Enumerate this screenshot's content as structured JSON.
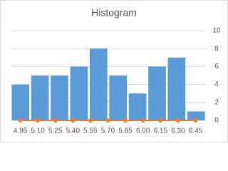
{
  "chart_data": [
    {
      "type": "bar",
      "title": "Histogram",
      "categories": [
        null,
        null,
        null,
        null,
        null,
        null,
        null,
        null,
        null,
        null
      ],
      "values": [
        4,
        5,
        5,
        6,
        8,
        5,
        3,
        6,
        7,
        1
      ],
      "color": "#5b9bd5",
      "ylim": [
        0,
        10
      ],
      "yticks": [
        0,
        2,
        4,
        6,
        8,
        10
      ],
      "grid": true
    },
    {
      "type": "scatter",
      "x": [
        4.95,
        5.1,
        5.25,
        5.4,
        5.55,
        5.7,
        5.85,
        6.0,
        6.15,
        6.3,
        6.45
      ],
      "values": [
        0,
        0,
        0,
        0,
        0,
        0,
        0,
        0,
        0,
        0,
        0
      ],
      "color": "#ed7d31",
      "xlim": [
        4.95,
        6.45
      ],
      "xticks": [
        4.95,
        {
          "value": 5.1,
          "label": "5.10"
        },
        5.25,
        {
          "value": 5.4,
          "label": "5.40"
        },
        5.55,
        {
          "value": 5.7,
          "label": "5.70"
        },
        5.85,
        {
          "value": 6.0,
          "label": "6.00"
        },
        6.15,
        {
          "value": 6.3,
          "label": "6.30"
        },
        6.45
      ]
    }
  ]
}
